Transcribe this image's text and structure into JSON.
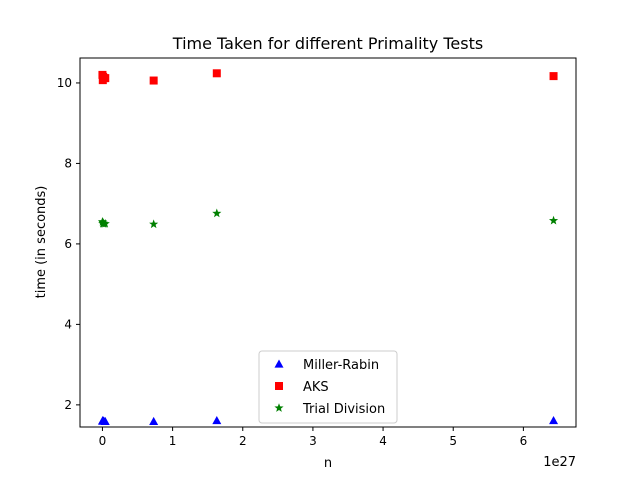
{
  "chart_data": {
    "type": "scatter",
    "title": "Time Taken for different Primality Tests",
    "xlabel": "n",
    "ylabel": "time (in seconds)",
    "x_offset_label": "1e27",
    "xlim": [
      -0.32,
      6.75
    ],
    "ylim": [
      1.45,
      10.62
    ],
    "x_ticks": [
      0,
      1,
      2,
      3,
      4,
      5,
      6
    ],
    "y_ticks": [
      2,
      4,
      6,
      8,
      10
    ],
    "grid": false,
    "legend_position": "lower center",
    "series": [
      {
        "name": "Miller-Rabin",
        "marker": "triangle",
        "color": "#0000ff",
        "x": [
          0.0,
          0.005,
          0.01,
          0.02,
          0.04,
          0.73,
          1.63,
          6.43
        ],
        "y": [
          1.6,
          1.61,
          1.6,
          1.6,
          1.59,
          1.59,
          1.61,
          1.61
        ]
      },
      {
        "name": "AKS",
        "marker": "square",
        "color": "#ff0000",
        "x": [
          0.0,
          0.005,
          0.01,
          0.02,
          0.04,
          0.73,
          1.63,
          6.43
        ],
        "y": [
          10.2,
          10.07,
          10.15,
          10.12,
          10.12,
          10.06,
          10.24,
          10.17
        ]
      },
      {
        "name": "Trial Division",
        "marker": "star",
        "color": "#008000",
        "x": [
          0.0,
          0.005,
          0.01,
          0.02,
          0.04,
          0.73,
          1.63,
          6.43
        ],
        "y": [
          6.55,
          6.5,
          6.52,
          6.5,
          6.5,
          6.49,
          6.76,
          6.58
        ]
      }
    ]
  }
}
